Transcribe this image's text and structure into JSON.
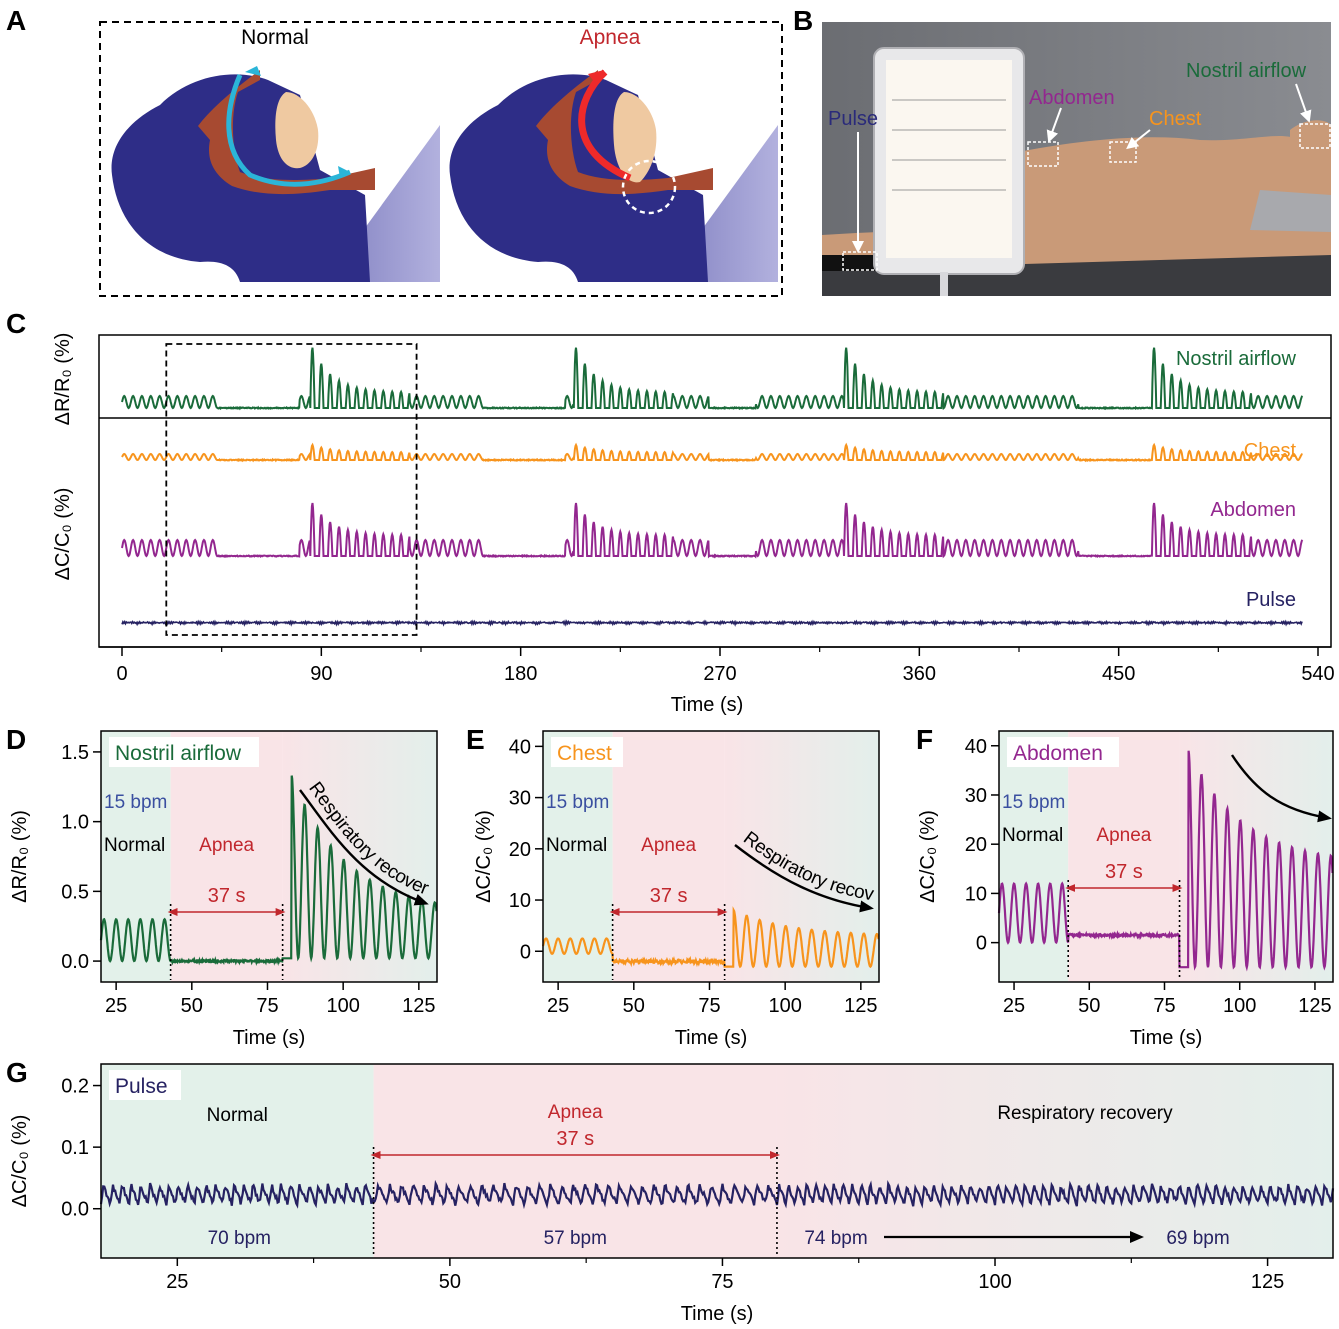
{
  "colors": {
    "green": "#1a6b3a",
    "orange": "#f7941d",
    "purple": "#93278f",
    "navy": "#262262",
    "red": "#c1272d",
    "blue_text": "#3a4fa0",
    "normal_bg": "#e3f1ea",
    "apnea_bg": "#f9e4e7",
    "recovery_bg": "#e6efec"
  },
  "panels": {
    "A": {
      "letter": "A",
      "normal_label": "Normal",
      "apnea_label": "Apnea"
    },
    "B": {
      "letter": "B",
      "pulse": "Pulse",
      "abdomen": "Abdomen",
      "chest": "Chest",
      "nostril": "Nostril airflow"
    }
  },
  "chart_data": [
    {
      "id": "C",
      "type": "line",
      "letter": "C",
      "xlabel": "Time (s)",
      "xticks": [
        "0",
        "90",
        "180",
        "270",
        "360",
        "450",
        "540"
      ],
      "xlim": [
        0,
        540
      ],
      "ylabel_top": "ΔR/R₀ (%)",
      "ylabel_bottom": "ΔC/C₀ (%)",
      "zoom_window_s": [
        20,
        133
      ],
      "series": [
        {
          "name": "Nostril airflow",
          "color": "#1a6b3a"
        },
        {
          "name": "Chest",
          "color": "#f7941d"
        },
        {
          "name": "Abdomen",
          "color": "#93278f"
        },
        {
          "name": "Pulse",
          "color": "#262262"
        }
      ]
    },
    {
      "id": "D",
      "type": "line",
      "letter": "D",
      "series_name": "Nostril airflow",
      "xlabel": "Time (s)",
      "ylabel": "ΔR/R₀ (%)",
      "xlim": [
        20,
        131
      ],
      "ylim": [
        -0.15,
        1.65
      ],
      "xticks": [
        "25",
        "50",
        "75",
        "100",
        "125"
      ],
      "yticks": [
        "0.0",
        "0.5",
        "1.0",
        "1.5"
      ],
      "rate": "15 bpm",
      "normal": "Normal",
      "apnea": "Apnea",
      "duration": "37 s",
      "arrow_text": "Respiratory recovery",
      "apnea_start": 43,
      "apnea_end": 80,
      "normal_amplitude": 0.3,
      "apnea_level": 0.0,
      "recovery_peak": 1.33,
      "recovery_end": 0.35
    },
    {
      "id": "E",
      "type": "line",
      "letter": "E",
      "series_name": "Chest",
      "xlabel": "Time (s)",
      "ylabel": "ΔC/C₀ (%)",
      "xlim": [
        20,
        131
      ],
      "ylim": [
        -6,
        43
      ],
      "xticks": [
        "25",
        "50",
        "75",
        "100",
        "125"
      ],
      "yticks": [
        "0",
        "10",
        "20",
        "30",
        "40"
      ],
      "rate": "15 bpm",
      "normal": "Normal",
      "apnea": "Apnea",
      "duration": "37 s",
      "arrow_text": "Respiratory recovery",
      "apnea_start": 43,
      "apnea_end": 80,
      "normal_amplitude": 3,
      "apnea_level": -2,
      "recovery_peak": 8,
      "recovery_end": 3
    },
    {
      "id": "F",
      "type": "line",
      "letter": "F",
      "series_name": "Abdomen",
      "xlabel": "Time (s)",
      "ylabel": "ΔC/C₀ (%)",
      "xlim": [
        20,
        131
      ],
      "ylim": [
        -8,
        43
      ],
      "xticks": [
        "25",
        "50",
        "75",
        "100",
        "125"
      ],
      "yticks": [
        "0",
        "10",
        "20",
        "30",
        "40"
      ],
      "rate": "15 bpm",
      "normal": "Normal",
      "apnea": "Apnea",
      "duration": "37 s",
      "apnea_start": 43,
      "apnea_end": 80,
      "normal_amplitude": 12,
      "apnea_level": 1.5,
      "recovery_peak": 39,
      "recovery_end": 16
    },
    {
      "id": "G",
      "type": "line",
      "letter": "G",
      "series_name": "Pulse",
      "xlabel": "Time (s)",
      "ylabel": "ΔC/C₀ (%)",
      "xlim": [
        18,
        131
      ],
      "ylim": [
        -0.08,
        0.235
      ],
      "xticks": [
        "25",
        "50",
        "75",
        "100",
        "125"
      ],
      "yticks": [
        "0.0",
        "0.1",
        "0.2"
      ],
      "normal": "Normal",
      "apnea": "Apnea",
      "recovery": "Respiratory recovery",
      "duration": "37 s",
      "apnea_start": 43,
      "apnea_end": 80,
      "rate_normal": "70 bpm",
      "rate_apnea": "57 bpm",
      "rate_recovery_start": "74 bpm",
      "rate_recovery_end": "69 bpm",
      "baseline": 0.02,
      "amplitude": 0.03
    }
  ]
}
